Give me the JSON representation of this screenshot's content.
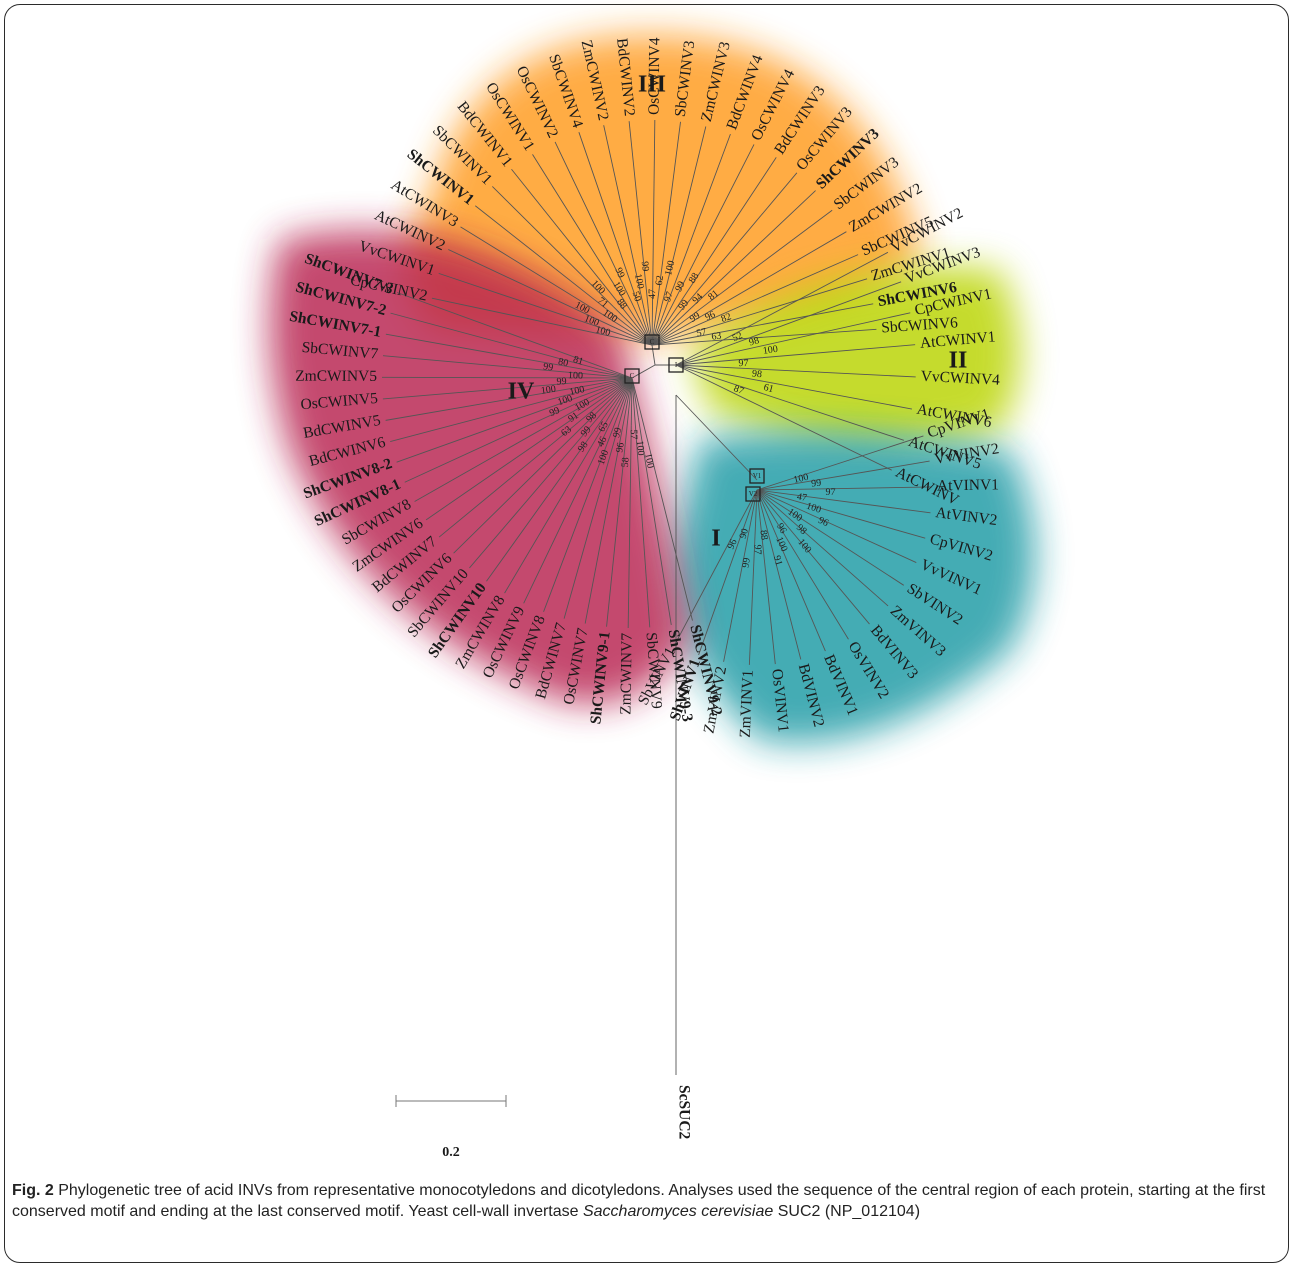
{
  "clades": [
    {
      "id": "III",
      "label": "III",
      "color": "#ff9a1a"
    },
    {
      "id": "II",
      "label": "II",
      "color": "#b9d400"
    },
    {
      "id": "I",
      "label": "I",
      "color": "#1a9aa4"
    },
    {
      "id": "IV",
      "label": "IV",
      "color": "#b8244f"
    }
  ],
  "taxa": {
    "III": [
      "CpCWINV2",
      "VvCWINV1",
      "AtCWINV2",
      "AtCWINV3",
      "ShCWINV1",
      "SbCWINV1",
      "BdCWINV1",
      "OsCWINV1",
      "OsCWINV2",
      "SbCWINV4",
      "ZmCWINV2",
      "BdCWINV2",
      "OsCWINV4",
      "SbCWINV3",
      "ZmCWINV3",
      "BdCWINV4",
      "OsCWINV4",
      "BdCWINV3",
      "OsCWINV3",
      "ShCWINV3",
      "SbCWINV3",
      "ZmCWINV2",
      "SbCWINV5",
      "ZmCWINV1",
      "ShCWINV6",
      "SbCWINV6"
    ],
    "III_bold": [
      4,
      19,
      24
    ],
    "II": [
      "VvCWINV2",
      "VvCWINV3",
      "CpCWINV1",
      "AtCWINV1",
      "VvCWINV4",
      "AtCWINV6",
      "AtCWINV5",
      "AtCWINV"
    ],
    "I": [
      "CpVINV1",
      "VvVINV2",
      "AtVINV1",
      "AtVINV2",
      "CpVINV2",
      "VvVINV1",
      "SbVINV2",
      "ZmVINV3",
      "BdVINV3",
      "OsVINV2",
      "BdVINV1",
      "BdVINV2",
      "OsVINV1",
      "ZmVINV1",
      "ZmVINV2",
      "ShVINV1",
      "SbVINV1"
    ],
    "I_bold": [
      15
    ],
    "IV": [
      "ShCWINV7-3",
      "ShCWINV7-2",
      "ShCWINV7-1",
      "SbCWINV7",
      "ZmCWINV5",
      "OsCWINV5",
      "BdCWINV5",
      "BdCWINV6",
      "ShCWINV8-2",
      "ShCWINV8-1",
      "SbCWINV8",
      "ZmCWINV6",
      "BdCWINV7",
      "OsCWINV6",
      "SbCWINV10",
      "ShCWINV10",
      "ZmCWINV8",
      "OsCWINV9",
      "OsCWINV8",
      "BdCWINV7",
      "OsCWINV7",
      "ShCWINV9-1",
      "ZmCWINV7",
      "SbCWINV9",
      "ShCWINV9-3",
      "ShCWINV9-2"
    ],
    "IV_bold": [
      0,
      1,
      2,
      8,
      9,
      15,
      21,
      24,
      25
    ],
    "outgroup": "ScSUC2"
  },
  "bootstrap": {
    "III": [
      "100",
      "100",
      "100",
      "100",
      "71",
      "100",
      "88",
      "100",
      "99",
      "50",
      "100",
      "99",
      "47",
      "62",
      "100",
      "97",
      "99",
      "88",
      "99",
      "94",
      "81",
      "99",
      "96",
      "82",
      "57",
      "63"
    ],
    "II": [
      "52",
      "98",
      "100",
      "97",
      "98",
      "61",
      "87"
    ],
    "I": [
      "100",
      "99",
      "97",
      "47",
      "100",
      "96",
      "100",
      "98",
      "100",
      "96",
      "100",
      "91",
      "88",
      "97",
      "99",
      "90",
      "96"
    ],
    "IV": [
      "81",
      "80",
      "99",
      "100",
      "99",
      "100",
      "100",
      "100",
      "99",
      "100",
      "91",
      "63",
      "98",
      "99",
      "98",
      "65",
      "46",
      "100",
      "99",
      "96",
      "58",
      "57",
      "100",
      "100"
    ]
  },
  "node_markers": [
    "C",
    "C",
    "I",
    "V1",
    "V2",
    "C"
  ],
  "scale_bar": {
    "label": "0.2"
  },
  "caption": {
    "fig_label": "Fig. 2",
    "text_1": " Phylogenetic tree of acid INVs from representative monocotyledons and dicotyledons. Analyses used the sequence of the central region of each protein, starting at the first conserved motif and ending at the last conserved motif. Yeast cell-wall invertase ",
    "species": "Saccharomyces cerevisiae",
    "text_2": " SUC2 (NP_012104)"
  }
}
